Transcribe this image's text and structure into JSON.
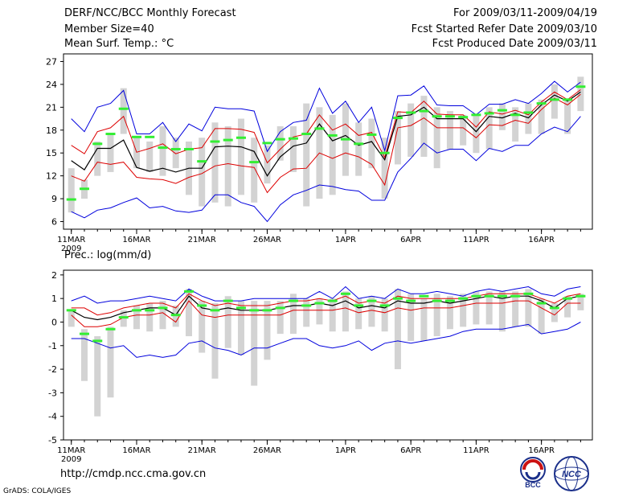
{
  "header": {
    "title": "DERF/NCC/BCC Monthly Forecast",
    "member_size": "Member Size=40",
    "variable": "Mean Surf. Temp.: °C",
    "period": "For 2009/03/11-2009/04/19",
    "started": "Fcst Started Refer Date 2009/03/10",
    "produced": "Fcst Produced Date 2009/03/11"
  },
  "footer": {
    "url": "http://cmdp.ncc.cma.gov.cn",
    "credit": "GrADS: COLA/IGES",
    "logo_bcc": "BCC",
    "logo_ncc": "NCC"
  },
  "colors": {
    "box": "#d3d3d3",
    "median": "#33ee33",
    "mean": "#000000",
    "spread": "#dd0000",
    "extreme": "#0000dd"
  },
  "chart_data": [
    {
      "type": "box-ensemble",
      "title": "Mean Surf. Temp.: °C",
      "ylim": [
        5,
        28
      ],
      "yticks": [
        6,
        9,
        12,
        15,
        18,
        21,
        24,
        27
      ],
      "x_tick_labels": [
        "11MAR",
        "16MAR",
        "21MAR",
        "26MAR",
        "1APR",
        "6APR",
        "11APR",
        "16APR"
      ],
      "x_tick_days": [
        0,
        5,
        10,
        15,
        21,
        26,
        31,
        36
      ],
      "year_label": "2009",
      "series": [
        {
          "name": "max",
          "values": [
            19.5,
            17.8,
            21.0,
            21.5,
            23.2,
            17.5,
            17.5,
            19.0,
            16.5,
            18.8,
            17.9,
            21.0,
            20.8,
            20.8,
            20.5,
            15.2,
            17.8,
            19.0,
            19.3,
            23.5,
            20.2,
            21.8,
            19.0,
            21.0,
            15.3,
            22.5,
            22.6,
            23.8,
            21.3,
            21.2,
            21.2,
            20.0,
            21.4,
            21.4,
            22.0,
            21.5,
            22.8,
            24.4,
            23.0,
            24.3
          ]
        },
        {
          "name": "mean_plus_sd",
          "values": [
            16.0,
            14.9,
            17.8,
            18.3,
            19.8,
            15.1,
            15.6,
            16.2,
            14.9,
            15.5,
            15.7,
            18.2,
            18.2,
            18.1,
            17.7,
            13.7,
            15.5,
            17.1,
            17.5,
            20.0,
            18.0,
            18.8,
            17.3,
            17.7,
            14.4,
            20.4,
            20.3,
            21.8,
            20.1,
            20.0,
            20.0,
            18.4,
            20.4,
            20.1,
            20.6,
            20.0,
            21.7,
            23.0,
            22.0,
            23.3
          ]
        },
        {
          "name": "mean",
          "values": [
            14.0,
            12.8,
            15.6,
            15.6,
            16.7,
            13.1,
            12.6,
            13.0,
            12.5,
            13.0,
            13.0,
            15.8,
            15.9,
            15.8,
            15.2,
            12.0,
            14.5,
            15.9,
            16.3,
            18.8,
            16.6,
            17.3,
            16.0,
            16.5,
            14.1,
            19.8,
            20.0,
            21.0,
            19.5,
            19.5,
            19.5,
            17.8,
            19.8,
            19.6,
            20.2,
            19.6,
            21.3,
            22.6,
            21.8,
            23.0
          ]
        },
        {
          "name": "mean_minus_sd",
          "values": [
            12.0,
            11.3,
            13.8,
            13.5,
            13.8,
            11.8,
            11.6,
            11.5,
            11.0,
            11.8,
            12.3,
            13.3,
            13.6,
            13.3,
            13.1,
            9.8,
            11.8,
            12.9,
            13.0,
            15.0,
            14.3,
            15.0,
            14.5,
            13.5,
            10.8,
            18.3,
            18.6,
            19.6,
            18.3,
            18.3,
            18.3,
            17.0,
            18.7,
            18.6,
            19.3,
            18.9,
            20.7,
            22.2,
            21.3,
            22.7
          ]
        },
        {
          "name": "min",
          "values": [
            7.3,
            6.5,
            7.5,
            7.8,
            8.5,
            9.1,
            7.8,
            8.0,
            7.4,
            7.2,
            7.5,
            9.5,
            9.5,
            8.5,
            8.0,
            6.0,
            8.2,
            9.5,
            10.1,
            10.8,
            10.6,
            10.2,
            10.0,
            8.8,
            8.8,
            12.5,
            14.3,
            16.3,
            15.0,
            15.5,
            15.5,
            14.0,
            15.6,
            15.2,
            16.0,
            16.0,
            17.5,
            18.4,
            17.8,
            19.8
          ]
        },
        {
          "name": "box_low",
          "values": [
            7.2,
            9.0,
            12.0,
            12.5,
            17.5,
            13.0,
            12.5,
            12.0,
            13.0,
            9.5,
            8.0,
            8.5,
            8.0,
            9.5,
            8.5,
            11.0,
            14.0,
            12.5,
            8.0,
            9.0,
            9.5,
            12.0,
            12.0,
            13.0,
            9.0,
            13.5,
            14.5,
            14.5,
            13.0,
            15.5,
            16.0,
            15.0,
            15.5,
            18.0,
            16.5,
            17.5,
            17.5,
            19.5,
            17.5,
            20.5
          ]
        },
        {
          "name": "box_high",
          "values": [
            13.0,
            11.5,
            16.5,
            17.5,
            23.5,
            17.0,
            16.5,
            18.5,
            17.0,
            16.5,
            17.0,
            19.0,
            18.5,
            19.5,
            17.0,
            16.0,
            18.5,
            18.5,
            21.5,
            21.0,
            20.0,
            21.5,
            19.0,
            19.5,
            17.0,
            20.5,
            21.5,
            22.5,
            21.0,
            20.5,
            20.0,
            20.0,
            21.0,
            21.5,
            21.0,
            21.5,
            22.0,
            24.0,
            22.0,
            25.0
          ]
        },
        {
          "name": "median",
          "values": [
            8.9,
            10.3,
            16.2,
            17.5,
            20.8,
            17.1,
            17.1,
            15.7,
            15.5,
            15.5,
            13.9,
            16.5,
            16.7,
            17.0,
            13.8,
            16.3,
            16.8,
            16.9,
            17.5,
            18.2,
            17.3,
            16.8,
            16.2,
            17.4,
            15.0,
            19.6,
            20.3,
            20.5,
            19.8,
            19.8,
            19.7,
            20.0,
            20.2,
            20.6,
            20.0,
            20.3,
            21.5,
            22.0,
            22.0,
            23.7
          ]
        }
      ]
    },
    {
      "type": "box-ensemble",
      "title": "Prec.: log(mm/d)",
      "ylim": [
        -5,
        2.2
      ],
      "yticks": [
        -5,
        -4,
        -3,
        -2,
        -1,
        0,
        1,
        2
      ],
      "x_tick_labels": [
        "11MAR",
        "16MAR",
        "21MAR",
        "26MAR",
        "1APR",
        "6APR",
        "11APR",
        "16APR"
      ],
      "x_tick_days": [
        0,
        5,
        10,
        15,
        21,
        26,
        31,
        36
      ],
      "year_label": "2009",
      "series": [
        {
          "name": "max",
          "values": [
            0.9,
            1.1,
            0.8,
            0.9,
            0.9,
            1.0,
            1.1,
            1.0,
            0.9,
            1.4,
            1.1,
            0.9,
            0.9,
            0.9,
            1.0,
            1.0,
            1.0,
            1.0,
            1.0,
            1.3,
            1.0,
            1.5,
            1.0,
            1.1,
            1.0,
            1.4,
            1.2,
            1.2,
            1.3,
            1.2,
            1.1,
            1.3,
            1.4,
            1.3,
            1.4,
            1.5,
            1.2,
            1.1,
            1.4,
            1.5
          ]
        },
        {
          "name": "mean_plus_sd",
          "values": [
            0.6,
            0.6,
            0.3,
            0.4,
            0.6,
            0.7,
            0.8,
            0.8,
            0.6,
            1.2,
            0.9,
            0.7,
            0.8,
            0.7,
            0.7,
            0.7,
            0.8,
            0.9,
            0.9,
            1.0,
            0.9,
            1.1,
            0.8,
            0.9,
            0.8,
            1.1,
            1.0,
            1.0,
            1.0,
            1.0,
            1.0,
            1.1,
            1.2,
            1.2,
            1.2,
            1.2,
            1.0,
            0.8,
            1.1,
            1.2
          ]
        },
        {
          "name": "mean",
          "values": [
            0.5,
            0.2,
            0.1,
            0.2,
            0.4,
            0.5,
            0.6,
            0.6,
            0.3,
            1.1,
            0.6,
            0.5,
            0.6,
            0.5,
            0.5,
            0.5,
            0.6,
            0.7,
            0.7,
            0.8,
            0.7,
            0.9,
            0.6,
            0.7,
            0.6,
            0.9,
            0.8,
            0.8,
            0.9,
            0.8,
            0.9,
            1.0,
            1.1,
            1.0,
            1.1,
            1.1,
            0.9,
            0.6,
            1.0,
            1.1
          ]
        },
        {
          "name": "mean_minus_sd",
          "values": [
            0.3,
            -0.2,
            -0.2,
            -0.1,
            0.2,
            0.3,
            0.3,
            0.4,
            0.0,
            0.9,
            0.3,
            0.2,
            0.3,
            0.3,
            0.3,
            0.3,
            0.3,
            0.5,
            0.5,
            0.5,
            0.5,
            0.6,
            0.4,
            0.5,
            0.4,
            0.6,
            0.5,
            0.6,
            0.6,
            0.6,
            0.7,
            0.8,
            0.8,
            0.8,
            0.9,
            0.9,
            0.6,
            0.3,
            0.8,
            0.8
          ]
        },
        {
          "name": "min",
          "values": [
            -0.7,
            -0.7,
            -0.9,
            -1.1,
            -1.0,
            -1.5,
            -1.4,
            -1.5,
            -1.4,
            -0.9,
            -0.8,
            -1.1,
            -1.2,
            -1.4,
            -1.1,
            -1.1,
            -0.9,
            -0.7,
            -0.7,
            -1.0,
            -1.1,
            -1.0,
            -0.8,
            -1.2,
            -0.9,
            -0.8,
            -0.9,
            -0.8,
            -0.7,
            -0.6,
            -0.4,
            -0.3,
            -0.3,
            -0.3,
            -0.2,
            -0.1,
            -0.5,
            -0.4,
            -0.3,
            0.0
          ]
        },
        {
          "name": "box_low",
          "values": [
            -0.2,
            -2.5,
            -4.0,
            -3.2,
            -0.2,
            -0.3,
            -0.4,
            -0.3,
            -0.2,
            -0.6,
            -1.3,
            -2.4,
            -1.1,
            -1.4,
            -2.7,
            -1.6,
            -0.5,
            -0.5,
            -0.2,
            -0.1,
            -0.4,
            -0.4,
            -0.3,
            -0.2,
            -0.4,
            -2.0,
            -0.8,
            -0.8,
            -0.6,
            -0.3,
            -0.2,
            -0.1,
            -0.1,
            -0.4,
            -0.2,
            -0.2,
            -0.5,
            0.0,
            0.2,
            0.5
          ]
        },
        {
          "name": "box_high",
          "values": [
            0.5,
            -0.3,
            -0.6,
            -0.2,
            0.5,
            0.7,
            0.8,
            0.9,
            0.7,
            1.4,
            0.9,
            0.8,
            1.1,
            0.9,
            0.9,
            0.9,
            0.9,
            1.2,
            1.0,
            1.0,
            1.0,
            1.3,
            1.0,
            1.1,
            1.0,
            1.4,
            1.2,
            1.0,
            1.2,
            1.1,
            1.2,
            1.3,
            1.3,
            1.3,
            1.3,
            1.4,
            1.0,
            0.8,
            1.1,
            1.2
          ]
        },
        {
          "name": "median",
          "values": [
            0.5,
            -0.5,
            -0.8,
            -0.3,
            0.2,
            0.5,
            0.5,
            0.6,
            0.3,
            1.3,
            0.7,
            0.5,
            0.9,
            0.6,
            0.5,
            0.5,
            0.6,
            0.9,
            0.7,
            0.8,
            0.9,
            1.2,
            0.7,
            0.9,
            0.7,
            1.0,
            0.9,
            1.1,
            0.9,
            0.9,
            1.0,
            1.1,
            1.1,
            1.1,
            1.1,
            1.2,
            0.8,
            0.6,
            1.0,
            1.1
          ]
        }
      ]
    }
  ]
}
